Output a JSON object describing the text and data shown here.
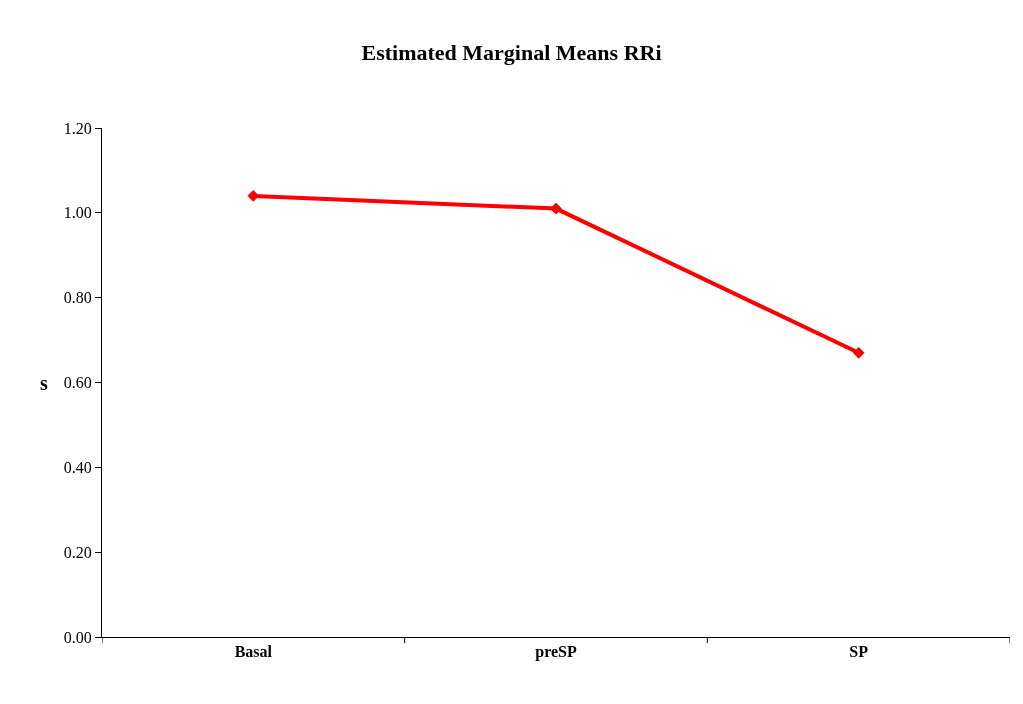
{
  "chart_data": {
    "type": "line",
    "title": "Estimated Marginal Means RRi",
    "ylabel": "s",
    "categories": [
      "Basal",
      "preSP",
      "SP"
    ],
    "series": [
      {
        "color": "#ff0000",
        "values": [
          1.04,
          1.01,
          0.67
        ]
      }
    ],
    "ylim": [
      0,
      1.2
    ],
    "yticks": [
      {
        "value": 0,
        "label": "0.00"
      },
      {
        "value": 0.2,
        "label": "0.20"
      },
      {
        "value": 0.4,
        "label": "0.40"
      },
      {
        "value": 0.6,
        "label": "0.60"
      },
      {
        "value": 0.8,
        "label": "0.80"
      },
      {
        "value": 1.0,
        "label": "1.00"
      },
      {
        "value": 1.2,
        "label": "1.20"
      }
    ],
    "legend": false,
    "marker": "diamond",
    "line_style": "solid"
  }
}
